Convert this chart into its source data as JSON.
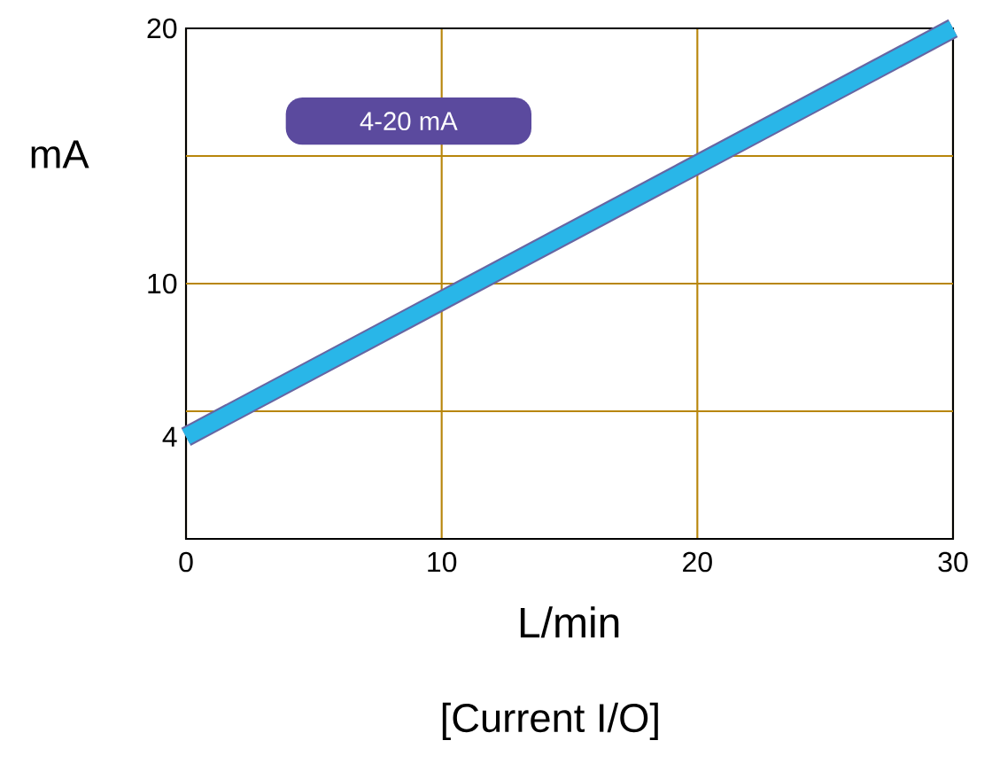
{
  "chart_data": {
    "type": "line",
    "xlabel": "L/min",
    "ylabel": "mA",
    "x": [
      0,
      30
    ],
    "series": [
      {
        "color": "#29b6e8",
        "values": [
          4,
          20
        ]
      }
    ],
    "xlim": [
      0,
      30
    ],
    "ylim": [
      0,
      20
    ],
    "xticks": [
      0,
      10,
      20,
      30
    ],
    "yticks": [
      4,
      10,
      20
    ],
    "grid": "x",
    "marker": "none",
    "line_style": "solid",
    "ref_lines": [
      {
        "axis": "y",
        "value": 5,
        "color": "#b8860b"
      },
      {
        "axis": "y",
        "value": 10,
        "color": "#b8860b"
      },
      {
        "axis": "y",
        "value": 15,
        "color": "#b8860b"
      }
    ],
    "annotations": [
      "4-20 mA",
      "[Current I/O]"
    ]
  }
}
